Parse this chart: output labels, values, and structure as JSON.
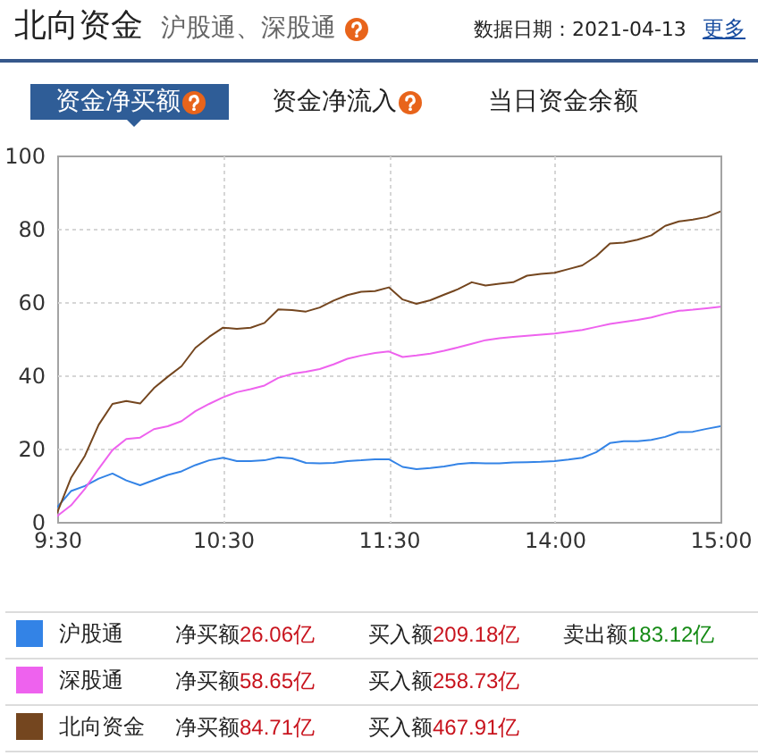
{
  "chart_data": {
    "type": "line",
    "title": "北向资金",
    "subtitle": "沪股通、深股通",
    "categories": [
      "9:30",
      null,
      null,
      null,
      null,
      null,
      null,
      null,
      null,
      null,
      null,
      null,
      "10:30",
      null,
      null,
      null,
      null,
      null,
      null,
      null,
      null,
      null,
      null,
      null,
      "11:30",
      null,
      null,
      null,
      null,
      null,
      null,
      null,
      null,
      null,
      null,
      null,
      "14:00",
      null,
      null,
      null,
      null,
      null,
      null,
      null,
      null,
      null,
      null,
      null,
      "15:00"
    ],
    "ylim": [
      0,
      100
    ],
    "yticks": [
      0,
      20,
      40,
      60,
      80,
      100
    ],
    "grid": true,
    "legend": "bottom",
    "series": [
      {
        "name": "沪股通",
        "color": "#3383e6",
        "values": [
          4,
          8.4,
          9.8,
          11.8,
          13.2,
          11.3,
          10,
          11.4,
          12.8,
          13.8,
          15.5,
          16.8,
          17.5,
          16.6,
          16.6,
          16.8,
          17.6,
          17.3,
          16.1,
          16,
          16.1,
          16.6,
          16.8,
          17.1,
          17.1,
          15,
          14.4,
          14.7,
          15.1,
          15.8,
          16.1,
          16,
          16,
          16.2,
          16.3,
          16.4,
          16.6,
          17,
          17.5,
          19,
          21.5,
          22,
          22,
          22.4,
          23.2,
          24.5,
          24.6,
          25.4,
          26.1
        ]
      },
      {
        "name": "深股通",
        "color": "#ee62ee",
        "values": [
          1.6,
          4.5,
          9,
          14.5,
          19.6,
          22.6,
          23,
          25.3,
          26.1,
          27.5,
          30.2,
          32.2,
          34,
          35.4,
          36.2,
          37.2,
          39.3,
          40.4,
          41,
          41.7,
          43,
          44.5,
          45.4,
          46.1,
          46.5,
          45,
          45.4,
          45.9,
          46.7,
          47.6,
          48.6,
          49.6,
          50.1,
          50.5,
          50.8,
          51.1,
          51.4,
          51.9,
          52.4,
          53.2,
          54,
          54.6,
          55.1,
          55.8,
          56.8,
          57.6,
          57.9,
          58.3,
          58.7
        ]
      },
      {
        "name": "北向资金",
        "color": "#74461f",
        "values": [
          2.5,
          12,
          18,
          26.5,
          32.2,
          33,
          32.3,
          36.5,
          39.6,
          42.5,
          47.5,
          50.5,
          53,
          52.7,
          53,
          54.3,
          58,
          57.8,
          57.4,
          58.5,
          60.4,
          61.9,
          62.8,
          63,
          64,
          60.7,
          59.5,
          60.5,
          62,
          63.5,
          65.4,
          64.5,
          65,
          65.4,
          67.2,
          67.7,
          68,
          69,
          70,
          72.5,
          76,
          76.2,
          77,
          78.2,
          80.8,
          82,
          82.5,
          83.2,
          84.7
        ]
      }
    ],
    "annotations": [
      "数据日期：2021-04-13",
      "更多",
      "资金净买额",
      "资金净流入",
      "当日资金余额",
      "净买额26.06亿",
      "买入额209.18亿",
      "卖出额183.12亿",
      "净买额58.65亿",
      "买入额258.73亿",
      "净买额84.71亿",
      "买入额467.91亿"
    ]
  }
}
